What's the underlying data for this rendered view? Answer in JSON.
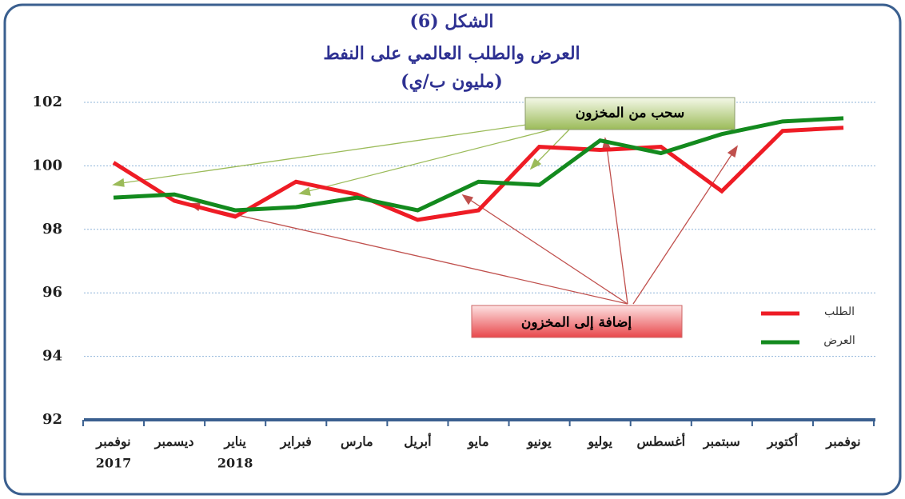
{
  "chart_data": {
    "type": "line",
    "title": [
      "الشكل (6)",
      "العرض والطلب العالمي على النفط",
      "(مليون ب/ي)"
    ],
    "categories": [
      [
        "نوفمبر",
        "2017"
      ],
      [
        "ديسمبر"
      ],
      [
        "يناير",
        "2018"
      ],
      [
        "فبراير"
      ],
      [
        "مارس"
      ],
      [
        "أبريل"
      ],
      [
        "مايو"
      ],
      [
        "يونيو"
      ],
      [
        "يوليو"
      ],
      [
        "أغسطس"
      ],
      [
        "سبتمبر"
      ],
      [
        "أكتوبر"
      ],
      [
        "نوفمبر"
      ]
    ],
    "series": [
      {
        "name": "الطلب",
        "color": "#ee1c25",
        "values": [
          100.1,
          98.9,
          98.4,
          99.5,
          99.1,
          98.3,
          98.6,
          100.6,
          100.5,
          100.6,
          99.2,
          101.1,
          101.2
        ]
      },
      {
        "name": "العرض",
        "color": "#138a1e",
        "values": [
          99.0,
          99.1,
          98.6,
          98.7,
          99.0,
          98.6,
          99.5,
          99.4,
          100.8,
          100.4,
          101.0,
          101.4,
          101.5
        ]
      }
    ],
    "ylim": [
      92,
      102
    ],
    "yticks": [
      92,
      94,
      96,
      98,
      100,
      102
    ],
    "grid": true,
    "legend": "right",
    "annotations": [
      "سحب من المخزون",
      "إضافة إلى المخزون"
    ]
  }
}
